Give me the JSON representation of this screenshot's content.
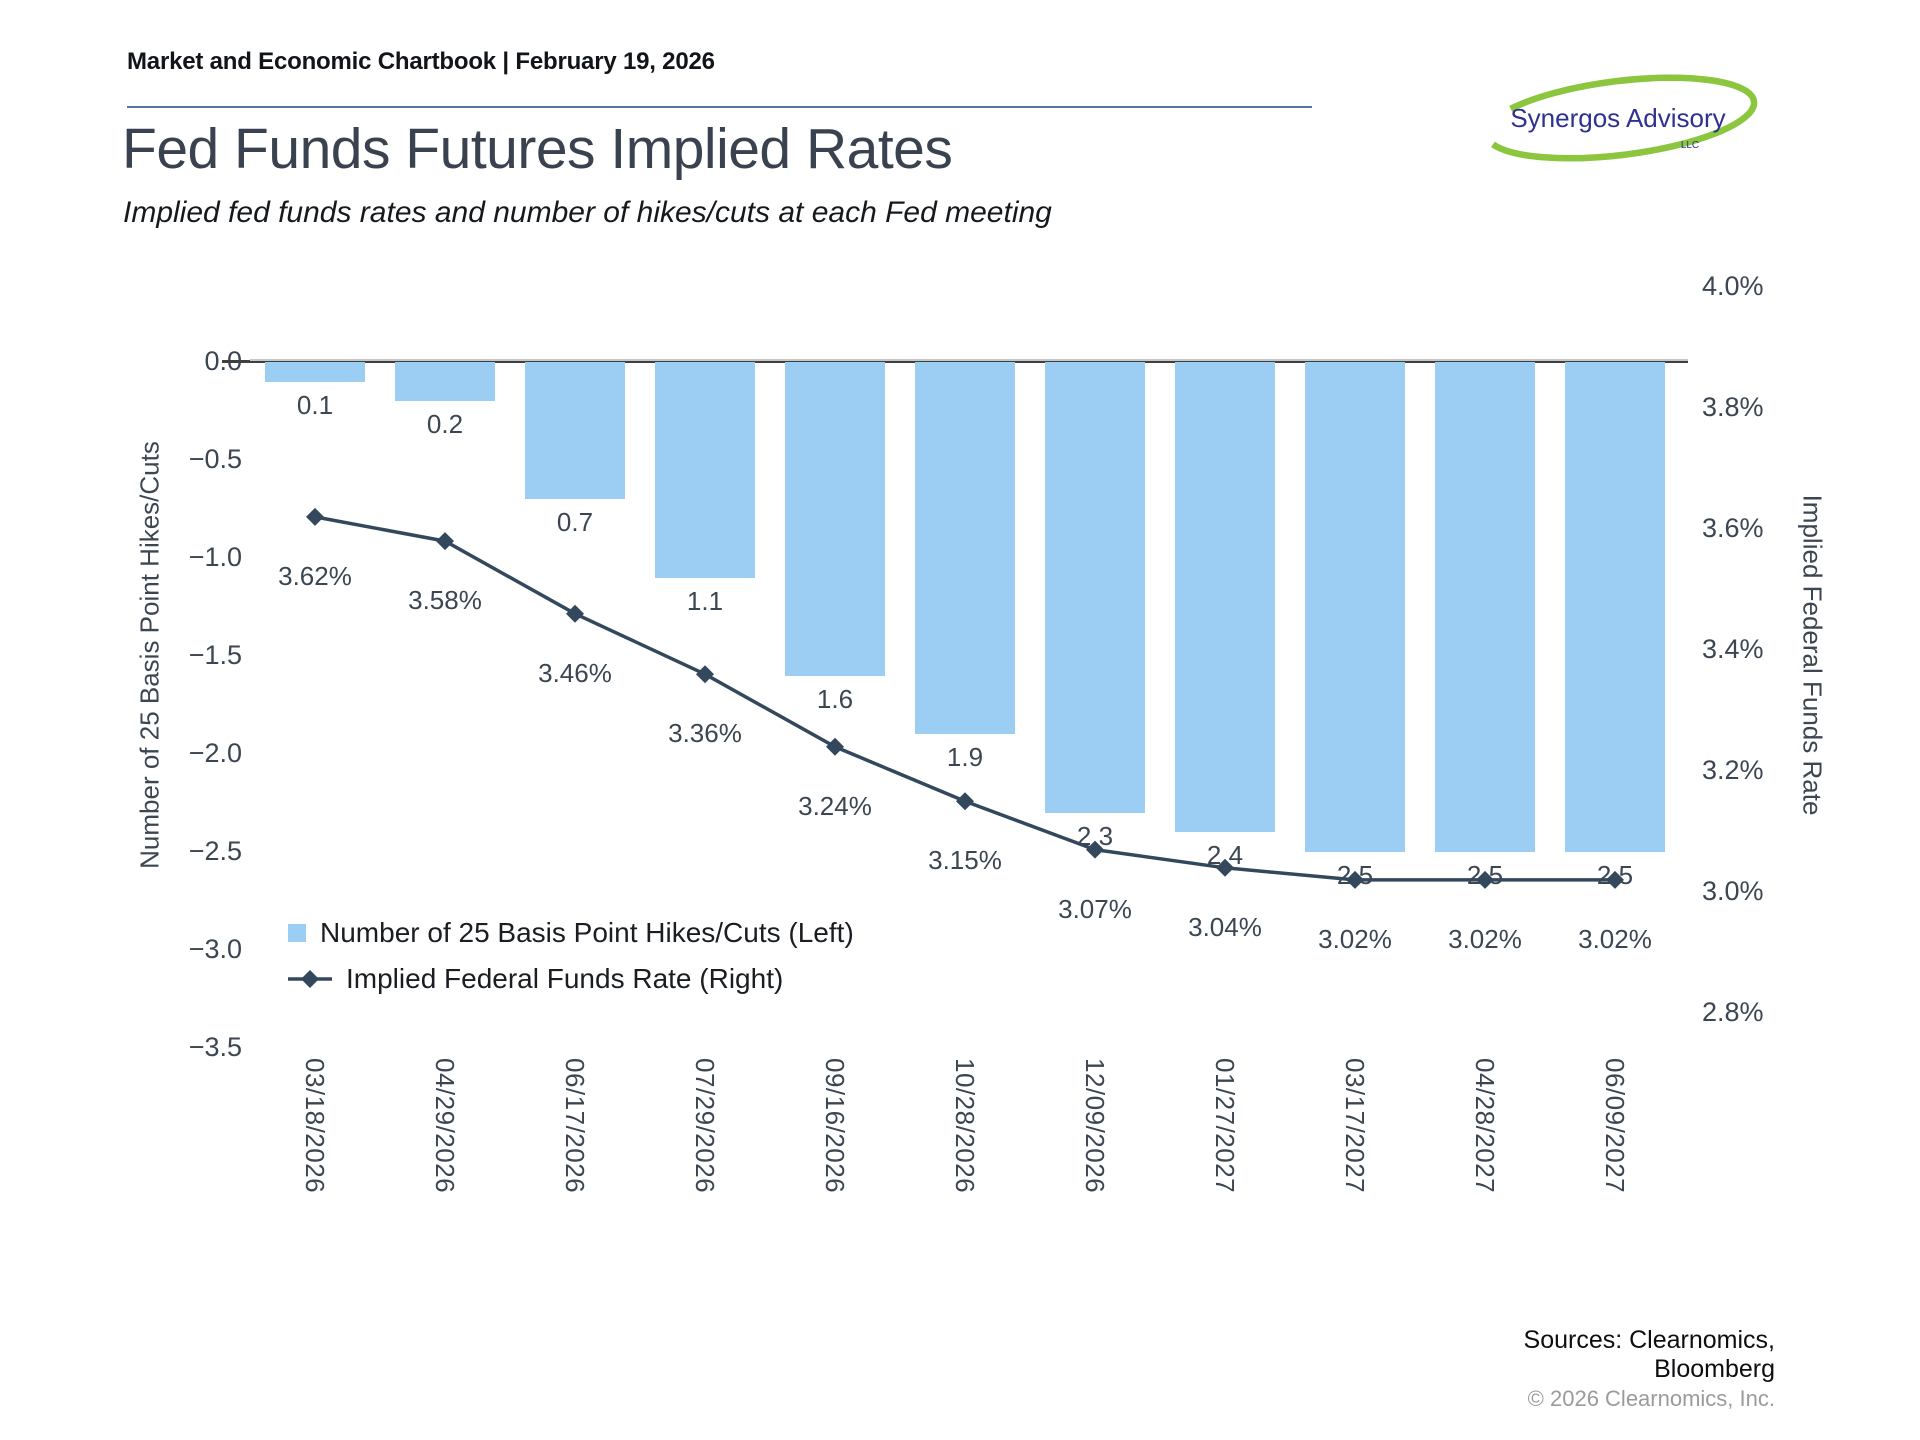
{
  "header": {
    "chartbook_line": "Market and Economic Chartbook | February 19, 2026"
  },
  "logo": {
    "name": "Synergos Advisory",
    "suffix": "LLC",
    "ring_color": "#8cc63e",
    "text_color": "#2e3192"
  },
  "title": "Fed Funds Futures Implied Rates",
  "subtitle": "Implied fed funds rates and number of hikes/cuts at each Fed meeting",
  "chart_data": {
    "type": "combo-bar-line",
    "categories": [
      "03/18/2026",
      "04/29/2026",
      "06/17/2026",
      "07/29/2026",
      "09/16/2026",
      "10/28/2026",
      "12/09/2026",
      "01/27/2027",
      "03/17/2027",
      "04/28/2027",
      "06/09/2027"
    ],
    "series": [
      {
        "name": "Number of 25 Basis Point Hikes/Cuts (Left)",
        "type": "bar",
        "axis": "left",
        "color": "#9ccef4",
        "values": [
          -0.1,
          -0.2,
          -0.7,
          -1.1,
          -1.6,
          -1.9,
          -2.3,
          -2.4,
          -2.5,
          -2.5,
          -2.5
        ],
        "labels": [
          "0.1",
          "0.2",
          "0.7",
          "1.1",
          "1.6",
          "1.9",
          "2.3",
          "2.4",
          "2.5",
          "2.5",
          "2.5"
        ]
      },
      {
        "name": "Implied Federal Funds Rate (Right)",
        "type": "line",
        "axis": "right",
        "color": "#33485c",
        "marker": "diamond",
        "values": [
          3.62,
          3.58,
          3.46,
          3.36,
          3.24,
          3.15,
          3.07,
          3.04,
          3.02,
          3.02,
          3.02
        ],
        "labels": [
          "3.62%",
          "3.58%",
          "3.46%",
          "3.36%",
          "3.24%",
          "3.15%",
          "3.07%",
          "3.04%",
          "3.02%",
          "3.02%",
          "3.02%"
        ]
      }
    ],
    "left_axis": {
      "title": "Number of 25 Basis Point Hikes/Cuts",
      "ticks": [
        "0.0",
        "−0.5",
        "−1.0",
        "−1.5",
        "−2.0",
        "−2.5",
        "−3.0",
        "−3.5"
      ],
      "range": [
        0.0,
        -3.5
      ]
    },
    "right_axis": {
      "title": "Implied Federal Funds Rate",
      "ticks": [
        "4.0%",
        "3.8%",
        "3.6%",
        "3.4%",
        "3.2%",
        "3.0%",
        "2.8%"
      ],
      "range": [
        4.0,
        2.8
      ]
    },
    "grid": "zero-line-only",
    "legend_position": "lower-left-inside"
  },
  "footer": {
    "sources_line1": "Sources: Clearnomics,",
    "sources_line2": "Bloomberg",
    "copyright": "© 2026 Clearnomics, Inc."
  }
}
